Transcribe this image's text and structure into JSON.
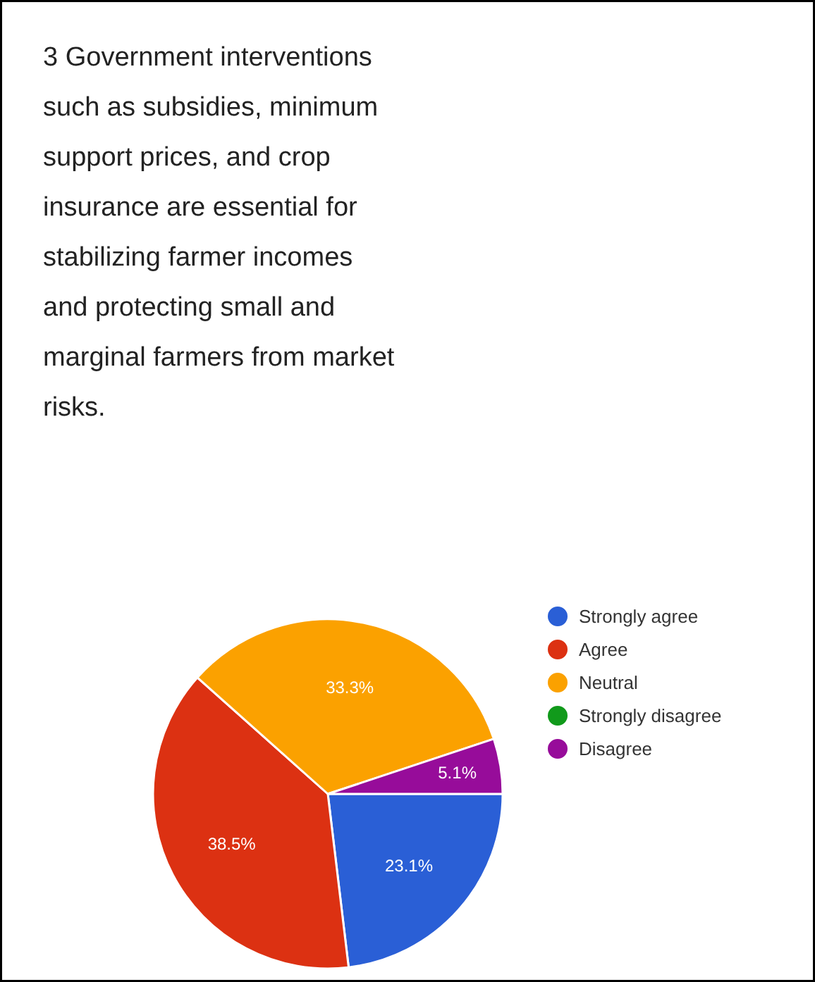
{
  "chart_data": {
    "type": "pie",
    "title": "3 Government interventions such as subsidies, minimum support prices, and crop insurance are essential for stabilizing farmer incomes and protecting small and marginal farmers from market risks.",
    "categories": [
      "Strongly agree",
      "Agree",
      "Neutral",
      "Strongly disagree",
      "Disagree"
    ],
    "values": [
      23.1,
      38.5,
      33.3,
      0,
      5.1
    ],
    "value_labels": [
      "23.1%",
      "38.5%",
      "33.3%",
      null,
      "5.1%"
    ],
    "colors": [
      "#2a5fd6",
      "#dc3112",
      "#fba100",
      "#119a1b",
      "#970c9a"
    ],
    "legend": "right"
  }
}
